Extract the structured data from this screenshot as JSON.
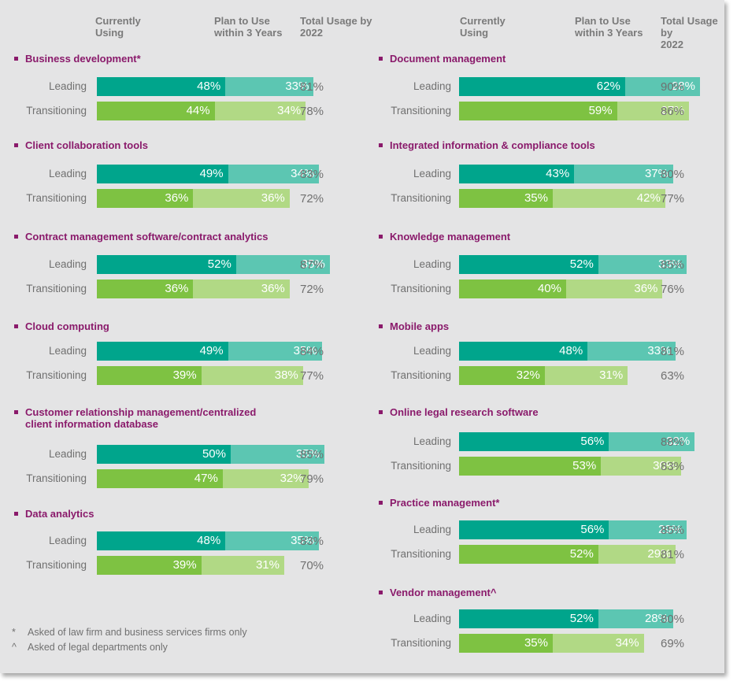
{
  "headers": {
    "current": "Currently Using",
    "plan": "Plan to Use within 3 Years",
    "total": "Total Usage by 2022"
  },
  "row_labels": {
    "leading": "Leading",
    "transitioning": "Transitioning"
  },
  "colors": {
    "leading_current": "#00a58c",
    "leading_plan": "#5cc6b2",
    "transitioning_current": "#7ec242",
    "transitioning_plan": "#b1d985",
    "category": "#8a1a6b",
    "background": "#e4e4e5"
  },
  "chart_data": {
    "type": "bar",
    "orientation": "horizontal-stacked",
    "series": [
      {
        "name": "Currently Using"
      },
      {
        "name": "Plan to Use within 3 Years"
      }
    ],
    "categories": [
      {
        "name": "Business development*",
        "leading": [
          48,
          33,
          "81%"
        ],
        "transitioning": [
          44,
          34,
          "78%"
        ]
      },
      {
        "name": "Client collaboration tools",
        "leading": [
          49,
          34,
          "83%"
        ],
        "transitioning": [
          36,
          36,
          "72%"
        ]
      },
      {
        "name": "Contract management software/contract analytics",
        "leading": [
          52,
          35,
          "87%"
        ],
        "transitioning": [
          36,
          36,
          "72%"
        ]
      },
      {
        "name": "Cloud computing",
        "leading": [
          49,
          35,
          "84%"
        ],
        "transitioning": [
          39,
          38,
          "77%"
        ]
      },
      {
        "name": "Customer relationship management/centralized client information database",
        "leading": [
          50,
          35,
          "85%"
        ],
        "transitioning": [
          47,
          32,
          "79%"
        ]
      },
      {
        "name": "Data analytics",
        "leading": [
          48,
          35,
          "83%"
        ],
        "transitioning": [
          39,
          31,
          "70%"
        ]
      },
      {
        "name": "Document management",
        "leading": [
          62,
          28,
          "90%"
        ],
        "transitioning": [
          59,
          27,
          "86%"
        ]
      },
      {
        "name": "Integrated information & compliance tools",
        "leading": [
          43,
          37,
          "80%"
        ],
        "transitioning": [
          35,
          42,
          "77%"
        ]
      },
      {
        "name": "Knowledge management",
        "leading": [
          52,
          33,
          "85%"
        ],
        "transitioning": [
          40,
          36,
          "76%"
        ]
      },
      {
        "name": "Mobile apps",
        "leading": [
          48,
          33,
          "81%"
        ],
        "transitioning": [
          32,
          31,
          "63%"
        ]
      },
      {
        "name": "Online legal research software",
        "leading": [
          56,
          32,
          "88%"
        ],
        "transitioning": [
          53,
          30,
          "83%"
        ]
      },
      {
        "name": "Practice management*",
        "leading": [
          56,
          29,
          "85%"
        ],
        "transitioning": [
          52,
          29,
          "81%"
        ]
      },
      {
        "name": "Vendor management^",
        "leading": [
          52,
          28,
          "80%"
        ],
        "transitioning": [
          35,
          34,
          "69%"
        ]
      }
    ]
  },
  "footnotes": [
    {
      "mark": "*",
      "text": "Asked of law firm and business services firms only"
    },
    {
      "mark": "^",
      "text": "Asked of legal departments only"
    }
  ]
}
